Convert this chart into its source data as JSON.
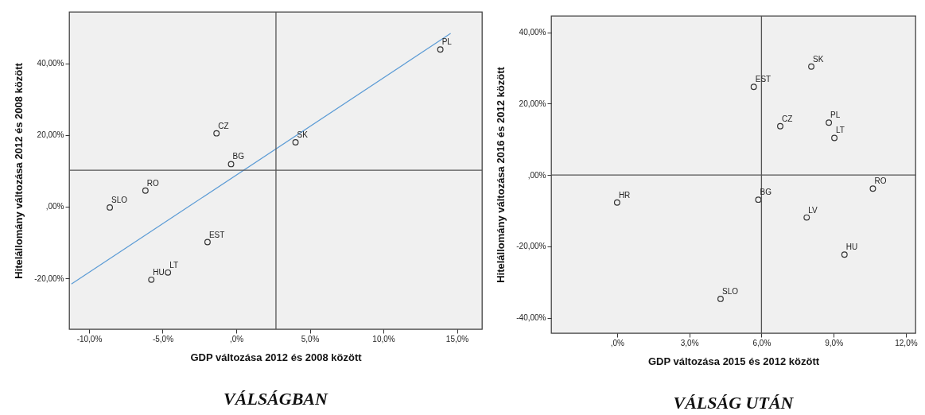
{
  "chart_data": [
    {
      "type": "scatter",
      "title": "VÁLSÁGBAN",
      "xlabel": "GDP változása 2012 és 2008 között",
      "ylabel": "Hitelállomány változása 2012 és 2008 között",
      "marker": "circle",
      "xlim": [
        -11.35,
        16.7
      ],
      "ylim": [
        -34.2,
        54.4
      ],
      "xticks": [
        {
          "value": -10,
          "label": "-10,0%"
        },
        {
          "value": -5,
          "label": "-5,0%"
        },
        {
          "value": 0,
          "label": ",0%"
        },
        {
          "value": 5,
          "label": "5,0%"
        },
        {
          "value": 10,
          "label": "10,0%"
        },
        {
          "value": 15,
          "label": "15,0%"
        }
      ],
      "yticks": [
        {
          "value": -20,
          "label": "-20,00%"
        },
        {
          "value": 0,
          "label": ",00%"
        },
        {
          "value": 20,
          "label": "20,00%"
        },
        {
          "value": 40,
          "label": "40,00%"
        }
      ],
      "series": [
        {
          "type": "scatter",
          "color": "#333333",
          "x": [
            13.87,
            4.03,
            -1.34,
            -0.35,
            -6.17,
            -8.59,
            -1.95,
            -4.64,
            -5.77
          ],
          "values": [
            43.9,
            18.0,
            20.5,
            11.9,
            4.5,
            -0.2,
            -9.9,
            -18.4,
            -20.4
          ]
        },
        {
          "type": "line",
          "color": "#5b9bd5",
          "marker": "none",
          "x": [
            -11.2,
            14.57
          ],
          "values": [
            -21.6,
            48.4
          ]
        }
      ],
      "ref_lines": [
        {
          "axis": "x",
          "value": 2.7,
          "color": "#555555"
        },
        {
          "axis": "y",
          "value": 10.2,
          "color": "#555555"
        }
      ],
      "annotations": [
        {
          "text": "PL",
          "x": 13.87,
          "y": 43.9
        },
        {
          "text": "SK",
          "x": 4.03,
          "y": 18.0
        },
        {
          "text": "CZ",
          "x": -1.34,
          "y": 20.5
        },
        {
          "text": "BG",
          "x": -0.35,
          "y": 11.9
        },
        {
          "text": "RO",
          "x": -6.17,
          "y": 4.5
        },
        {
          "text": "SLO",
          "x": -8.59,
          "y": -0.2
        },
        {
          "text": "EST",
          "x": -1.95,
          "y": -9.9
        },
        {
          "text": "LT",
          "x": -4.64,
          "y": -18.4
        },
        {
          "text": "HU",
          "x": -5.77,
          "y": -20.4
        }
      ]
    },
    {
      "type": "scatter",
      "title": "VÁLSÁG UTÁN",
      "xlabel": "GDP változása 2015 és 2012 között",
      "ylabel": "Hitelállomány változása 2016 és 2012 között",
      "marker": "circle",
      "xlim": [
        -2.74,
        12.4
      ],
      "ylim": [
        -44.3,
        44.6
      ],
      "xticks": [
        {
          "value": 0,
          "label": ",0%"
        },
        {
          "value": 3,
          "label": "3,0%"
        },
        {
          "value": 6,
          "label": "6,0%"
        },
        {
          "value": 9,
          "label": "9,0%"
        },
        {
          "value": 12,
          "label": "12,0%"
        }
      ],
      "yticks": [
        {
          "value": -40,
          "label": "-40,00%"
        },
        {
          "value": -20,
          "label": "-20,00%"
        },
        {
          "value": 0,
          "label": ",00%"
        },
        {
          "value": 20,
          "label": "20,00%"
        },
        {
          "value": 40,
          "label": "40,00%"
        }
      ],
      "series": [
        {
          "type": "scatter",
          "color": "#333333",
          "x": [
            8.07,
            5.68,
            6.78,
            8.8,
            9.03,
            10.63,
            0.0,
            5.87,
            7.88,
            9.45,
            4.3
          ],
          "values": [
            30.4,
            24.7,
            13.7,
            14.7,
            10.4,
            -3.8,
            -7.7,
            -6.9,
            -11.9,
            -22.3,
            -34.7
          ]
        }
      ],
      "ref_lines": [
        {
          "axis": "x",
          "value": 6.0,
          "color": "#555555"
        },
        {
          "axis": "y",
          "value": 0,
          "color": "#555555"
        }
      ],
      "annotations": [
        {
          "text": "SK",
          "x": 8.07,
          "y": 30.4
        },
        {
          "text": "EST",
          "x": 5.68,
          "y": 24.7
        },
        {
          "text": "CZ",
          "x": 6.78,
          "y": 13.7
        },
        {
          "text": "PL",
          "x": 8.8,
          "y": 14.7
        },
        {
          "text": "LT",
          "x": 9.03,
          "y": 10.4
        },
        {
          "text": "RO",
          "x": 10.63,
          "y": -3.8
        },
        {
          "text": "HR",
          "x": 0.0,
          "y": -7.7
        },
        {
          "text": "BG",
          "x": 5.87,
          "y": -6.9
        },
        {
          "text": "LV",
          "x": 7.88,
          "y": -11.9
        },
        {
          "text": "HU",
          "x": 9.45,
          "y": -22.3
        },
        {
          "text": "SLO",
          "x": 4.3,
          "y": -34.7
        }
      ]
    }
  ]
}
